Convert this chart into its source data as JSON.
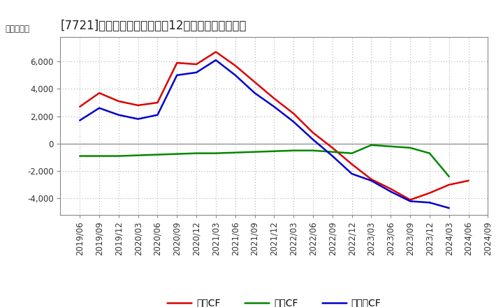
{
  "title": "[7721]　キャッシュフローの12か月移動合計の推移",
  "ylabel": "（百万円）",
  "background_color": "#ffffff",
  "plot_bg_color": "#ffffff",
  "grid_color": "#999999",
  "x_labels": [
    "2019/06",
    "2019/09",
    "2019/12",
    "2020/03",
    "2020/06",
    "2020/09",
    "2020/12",
    "2021/03",
    "2021/06",
    "2021/09",
    "2021/12",
    "2022/03",
    "2022/06",
    "2022/09",
    "2022/12",
    "2023/03",
    "2023/06",
    "2023/09",
    "2023/12",
    "2024/03",
    "2024/06",
    "2024/09"
  ],
  "eigyo_cf": [
    2700,
    3700,
    3100,
    2800,
    3000,
    5900,
    5800,
    6700,
    5700,
    4500,
    3300,
    2200,
    800,
    -300,
    -1500,
    -2600,
    -3300,
    -4100,
    -3600,
    -3000,
    -2700,
    null
  ],
  "toshi_cf": [
    -900,
    -900,
    -900,
    -850,
    -800,
    -750,
    -700,
    -700,
    -650,
    -600,
    -550,
    -500,
    -500,
    -600,
    -700,
    -100,
    -200,
    -300,
    -700,
    -2400,
    null,
    null
  ],
  "free_cf": [
    1700,
    2600,
    2100,
    1800,
    2100,
    5000,
    5200,
    6100,
    5000,
    3700,
    2700,
    1600,
    300,
    -900,
    -2200,
    -2700,
    -3500,
    -4200,
    -4300,
    -4700,
    null,
    null
  ],
  "eigyo_color": "#dd0000",
  "toshi_color": "#008800",
  "free_color": "#0000cc",
  "line_width": 1.8,
  "ylim": [
    -5200,
    7800
  ],
  "yticks": [
    -4000,
    -2000,
    0,
    2000,
    4000,
    6000
  ],
  "legend_labels": [
    "営業CF",
    "投資CF",
    "フリーCF"
  ],
  "title_fontsize": 12,
  "axis_fontsize": 8.5
}
